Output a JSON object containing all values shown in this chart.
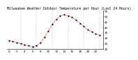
{
  "title": "Milwaukee Weather Outdoor Temperature per Hour (Last 24 Hours)",
  "hours": [
    0,
    1,
    2,
    3,
    4,
    5,
    6,
    7,
    8,
    9,
    10,
    11,
    12,
    13,
    14,
    15,
    16,
    17,
    18,
    19,
    20,
    21,
    22,
    23
  ],
  "temps": [
    28,
    27,
    26,
    25,
    24,
    23,
    22,
    23,
    26,
    31,
    37,
    43,
    48,
    51,
    52,
    51,
    50,
    47,
    44,
    41,
    38,
    36,
    34,
    33
  ],
  "line_color": "#cc0000",
  "marker_color": "#000000",
  "bg_color": "#ffffff",
  "grid_color": "#888888",
  "title_color": "#000000",
  "ylim": [
    20,
    56
  ],
  "yticks": [
    20,
    25,
    30,
    35,
    40,
    45,
    50,
    55
  ],
  "ylabel_fontsize": 3.0,
  "xlabel_fontsize": 3.0,
  "title_fontsize": 3.5,
  "vline_positions": [
    3,
    7,
    11,
    15,
    19,
    23
  ],
  "xticks": [
    0,
    2,
    4,
    6,
    8,
    10,
    12,
    14,
    16,
    18,
    20,
    22
  ]
}
